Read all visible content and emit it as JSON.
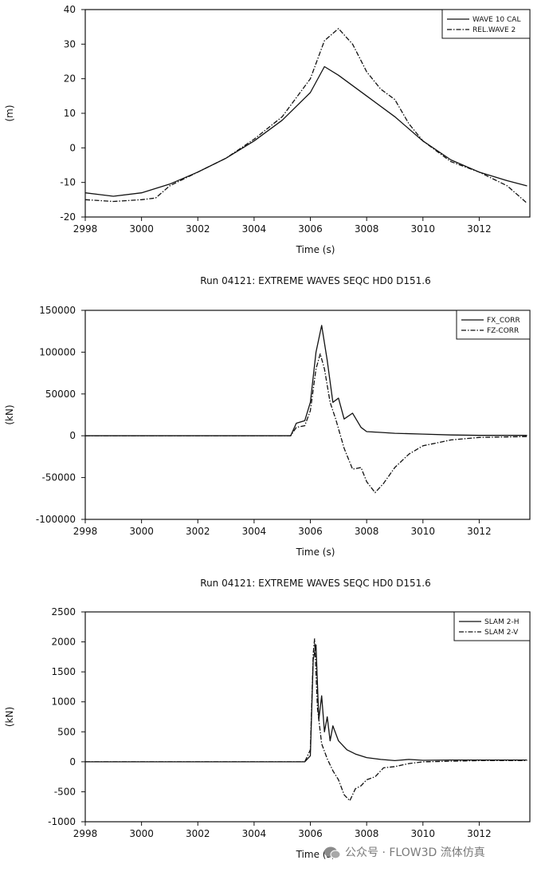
{
  "chart_data": [
    {
      "type": "line",
      "ylabel": "(m)",
      "xlabel": "Time (s)",
      "xlim": [
        2998,
        3013.8
      ],
      "ylim": [
        -20,
        40
      ],
      "xticks": [
        2998,
        3000,
        3002,
        3004,
        3006,
        3008,
        3010,
        3012
      ],
      "yticks": [
        -20,
        -10,
        0,
        10,
        20,
        30,
        40
      ],
      "legend_position": "top-right",
      "series": [
        {
          "name": "WAVE 10 CAL",
          "style": "solid",
          "x": [
            2998,
            2999,
            3000,
            3001,
            3002,
            3003,
            3004,
            3005,
            3006,
            3006.5,
            3007,
            3008,
            3009,
            3010,
            3011,
            3012,
            3013,
            3013.7
          ],
          "y": [
            -13,
            -14,
            -13,
            -10.5,
            -7,
            -3,
            2,
            8,
            16,
            23.5,
            21,
            15,
            9,
            2,
            -3.5,
            -7,
            -9.5,
            -11
          ]
        },
        {
          "name": "REL.WAVE 2",
          "style": "dashdot",
          "x": [
            2998,
            2999,
            3000,
            3000.5,
            3001,
            3002,
            3003,
            3004,
            3005,
            3006,
            3006.5,
            3007,
            3007.5,
            3008,
            3008.5,
            3009,
            3009.5,
            3010,
            3011,
            3012,
            3013,
            3013.7
          ],
          "y": [
            -15,
            -15.5,
            -15,
            -14.5,
            -11,
            -7,
            -3,
            2.5,
            9,
            20,
            31,
            34.5,
            30,
            22,
            17,
            14,
            7,
            2,
            -4,
            -7,
            -11,
            -16
          ]
        }
      ]
    },
    {
      "type": "line",
      "title": "Run 04121: EXTREME WAVES SEQC HD0 D151.6",
      "ylabel": "(kN)",
      "xlabel": "Time (s)",
      "xlim": [
        2998,
        3013.8
      ],
      "ylim": [
        -100000,
        150000
      ],
      "xticks": [
        2998,
        3000,
        3002,
        3004,
        3006,
        3008,
        3010,
        3012
      ],
      "yticks": [
        -100000,
        -50000,
        0,
        50000,
        100000,
        150000
      ],
      "legend_position": "top-right",
      "series": [
        {
          "name": "FX_CORR",
          "style": "solid",
          "x": [
            2998,
            3005.3,
            3005.5,
            3005.8,
            3006,
            3006.2,
            3006.4,
            3006.6,
            3006.8,
            3007,
            3007.2,
            3007.5,
            3007.8,
            3008,
            3008.5,
            3009,
            3010,
            3011,
            3012,
            3013.7
          ],
          "y": [
            0,
            0,
            15000,
            18000,
            40000,
            100000,
            132000,
            90000,
            40000,
            45000,
            20000,
            27000,
            10000,
            5000,
            4000,
            3000,
            2000,
            1000,
            500,
            500
          ]
        },
        {
          "name": "FZ-CORR",
          "style": "dashdot",
          "x": [
            2998,
            3005.3,
            3005.5,
            3005.8,
            3006,
            3006.2,
            3006.35,
            3006.5,
            3006.7,
            3006.9,
            3007.2,
            3007.5,
            3007.8,
            3008,
            3008.3,
            3008.6,
            3009,
            3009.5,
            3010,
            3011,
            3012,
            3013.7
          ],
          "y": [
            0,
            0,
            10000,
            12000,
            30000,
            80000,
            98000,
            80000,
            40000,
            20000,
            -15000,
            -40000,
            -38000,
            -55000,
            -68000,
            -57000,
            -38000,
            -22000,
            -12000,
            -5000,
            -2000,
            -1000
          ]
        }
      ]
    },
    {
      "type": "line",
      "title": "Run 04121: EXTREME WAVES SEQC HD0 D151.6",
      "ylabel": "(kN)",
      "xlabel": "Time (s)",
      "xlim": [
        2998,
        3013.8
      ],
      "ylim": [
        -1000,
        2500
      ],
      "xticks": [
        2998,
        3000,
        3002,
        3004,
        3006,
        3008,
        3010,
        3012
      ],
      "yticks": [
        -1000,
        -500,
        0,
        500,
        1000,
        1500,
        2000,
        2500
      ],
      "legend_position": "top-right",
      "series": [
        {
          "name": "SLAM 2-H",
          "style": "solid",
          "x": [
            2998,
            3005.8,
            3006,
            3006.1,
            3006.2,
            3006.3,
            3006.4,
            3006.5,
            3006.6,
            3006.7,
            3006.8,
            3007,
            3007.3,
            3007.6,
            3008,
            3008.5,
            3009,
            3009.5,
            3010,
            3011,
            3012,
            3013.7
          ],
          "y": [
            0,
            0,
            100,
            1700,
            1950,
            700,
            1100,
            500,
            750,
            350,
            600,
            350,
            200,
            130,
            70,
            40,
            20,
            40,
            25,
            30,
            30,
            30
          ]
        },
        {
          "name": "SLAM 2-V",
          "style": "dashdot",
          "x": [
            2998,
            3005.8,
            3006,
            3006.1,
            3006.15,
            3006.25,
            3006.4,
            3006.6,
            3006.8,
            3007,
            3007.2,
            3007.4,
            3007.6,
            3007.8,
            3008,
            3008.3,
            3008.6,
            3009,
            3009.5,
            3010,
            3011,
            3012,
            3013.7
          ],
          "y": [
            0,
            0,
            200,
            1800,
            2050,
            900,
            300,
            50,
            -150,
            -300,
            -550,
            -650,
            -450,
            -400,
            -300,
            -250,
            -100,
            -80,
            -30,
            0,
            10,
            20,
            20
          ]
        }
      ]
    }
  ],
  "watermark": "公众号 · FLOW3D 流体仿真"
}
